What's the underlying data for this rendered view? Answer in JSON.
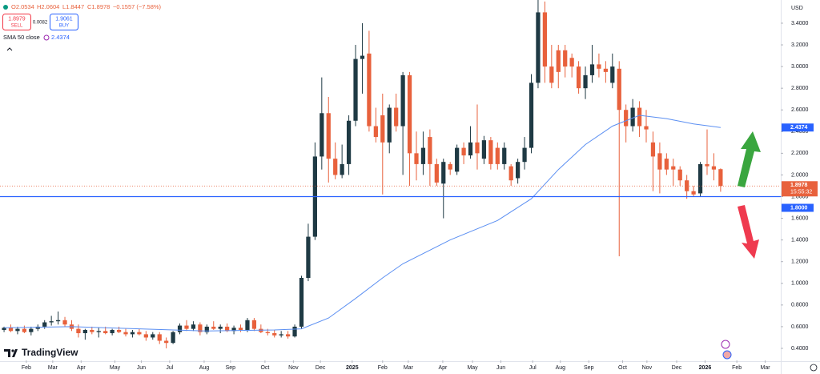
{
  "chart_data": {
    "type": "candlestick",
    "open": [
      0.57,
      0.59,
      0.56,
      0.58,
      0.55,
      0.58,
      0.6,
      0.64,
      0.65,
      0.66,
      0.62,
      0.58,
      0.54,
      0.57,
      0.55,
      0.56,
      0.54,
      0.57,
      0.55,
      0.53,
      0.55,
      0.53,
      0.5,
      0.53,
      0.47,
      0.45,
      0.55,
      0.61,
      0.58,
      0.62,
      0.55,
      0.6,
      0.58,
      0.6,
      0.56,
      0.59,
      0.57,
      0.66,
      0.58,
      0.55,
      0.54,
      0.52,
      0.53,
      0.51,
      0.6,
      1.05,
      1.43,
      2.17,
      2.57,
      2.15,
      2.0,
      2.1,
      2.5,
      3.07,
      3.12,
      2.45,
      2.55,
      2.3,
      2.62,
      2.45,
      2.92,
      2.2,
      2.1,
      2.35,
      2.1,
      1.92,
      2.1,
      2.03,
      2.25,
      2.18,
      2.3,
      2.15,
      2.32,
      2.25,
      2.1,
      2.08,
      1.97,
      2.12,
      2.25,
      2.85,
      3.5,
      3.0,
      3.15,
      3.15,
      3.08,
      3.0,
      2.8,
      2.92,
      3.02,
      2.98,
      2.85,
      2.98,
      2.6,
      2.45,
      2.62,
      2.45,
      2.3,
      2.2,
      2.15,
      2.08,
      2.05,
      1.95,
      1.85,
      1.83,
      2.1,
      2.08,
      2.0534
    ],
    "high": [
      0.6,
      0.62,
      0.6,
      0.61,
      0.6,
      0.62,
      0.66,
      0.7,
      0.74,
      0.69,
      0.66,
      0.62,
      0.58,
      0.6,
      0.59,
      0.6,
      0.58,
      0.6,
      0.58,
      0.57,
      0.58,
      0.56,
      0.55,
      0.55,
      0.5,
      0.56,
      0.63,
      0.66,
      0.65,
      0.64,
      0.62,
      0.65,
      0.62,
      0.63,
      0.61,
      0.62,
      0.68,
      0.68,
      0.62,
      0.58,
      0.57,
      0.56,
      0.56,
      0.62,
      1.07,
      1.55,
      2.3,
      2.9,
      2.72,
      2.3,
      2.28,
      2.55,
      3.2,
      3.4,
      3.33,
      2.62,
      2.75,
      2.65,
      2.75,
      2.95,
      2.95,
      2.4,
      2.4,
      2.42,
      2.15,
      2.15,
      2.12,
      2.28,
      2.3,
      2.45,
      2.65,
      2.36,
      2.35,
      2.3,
      2.3,
      2.1,
      2.15,
      2.35,
      2.93,
      3.63,
      3.6,
      3.2,
      3.2,
      3.2,
      3.12,
      3.05,
      3.0,
      3.2,
      3.12,
      3.05,
      3.12,
      3.05,
      2.65,
      2.7,
      2.68,
      2.6,
      2.4,
      2.3,
      2.2,
      2.15,
      2.08,
      2.0,
      1.9,
      2.12,
      2.42,
      2.2,
      2.0604
    ],
    "low": [
      0.55,
      0.55,
      0.53,
      0.54,
      0.52,
      0.56,
      0.58,
      0.61,
      0.62,
      0.6,
      0.56,
      0.5,
      0.48,
      0.53,
      0.5,
      0.53,
      0.52,
      0.54,
      0.51,
      0.5,
      0.52,
      0.47,
      0.48,
      0.44,
      0.4,
      0.44,
      0.53,
      0.56,
      0.56,
      0.52,
      0.53,
      0.57,
      0.54,
      0.55,
      0.53,
      0.55,
      0.55,
      0.56,
      0.54,
      0.52,
      0.5,
      0.5,
      0.49,
      0.5,
      0.58,
      1.02,
      1.4,
      2.05,
      1.93,
      1.96,
      1.97,
      2.0,
      2.45,
      2.75,
      2.4,
      2.3,
      1.82,
      2.2,
      2.4,
      2.0,
      1.9,
      1.95,
      2.0,
      1.9,
      1.9,
      1.6,
      2.0,
      2.0,
      2.1,
      2.15,
      2.05,
      2.1,
      2.05,
      2.05,
      2.05,
      1.9,
      1.92,
      2.05,
      2.2,
      2.8,
      2.85,
      2.8,
      2.8,
      2.9,
      2.9,
      2.75,
      2.7,
      2.85,
      2.9,
      2.85,
      2.8,
      1.25,
      2.3,
      2.4,
      2.35,
      2.3,
      1.85,
      1.83,
      2.0,
      1.9,
      1.9,
      1.78,
      1.8,
      1.8,
      2.0,
      1.95,
      1.8447
    ],
    "close": [
      0.59,
      0.56,
      0.58,
      0.55,
      0.58,
      0.6,
      0.64,
      0.65,
      0.66,
      0.62,
      0.58,
      0.54,
      0.57,
      0.55,
      0.56,
      0.54,
      0.57,
      0.55,
      0.53,
      0.55,
      0.53,
      0.5,
      0.53,
      0.47,
      0.45,
      0.55,
      0.61,
      0.58,
      0.62,
      0.55,
      0.6,
      0.58,
      0.6,
      0.56,
      0.59,
      0.57,
      0.66,
      0.58,
      0.55,
      0.54,
      0.52,
      0.53,
      0.51,
      0.6,
      1.05,
      1.43,
      2.17,
      2.57,
      2.15,
      2.0,
      2.1,
      2.5,
      3.07,
      3.1,
      2.45,
      2.35,
      2.3,
      2.62,
      2.45,
      2.92,
      2.2,
      2.1,
      2.25,
      2.1,
      1.93,
      2.12,
      2.05,
      2.25,
      2.18,
      2.3,
      2.2,
      2.32,
      2.1,
      2.1,
      2.25,
      1.95,
      2.12,
      2.25,
      2.85,
      3.5,
      3.0,
      2.85,
      2.95,
      3.0,
      3.0,
      2.8,
      2.92,
      3.02,
      2.98,
      2.95,
      3.0,
      2.6,
      2.45,
      2.62,
      2.45,
      2.42,
      2.17,
      2.05,
      2.05,
      2.05,
      1.95,
      1.85,
      1.82,
      2.1,
      2.08,
      2.05,
      1.8978
    ],
    "up_color": "#1f3a44",
    "down_color": "#e8613c",
    "sma": {
      "name": "SMA 50 close",
      "color": "#5b8ff2",
      "x": [
        0,
        10,
        20,
        30,
        40,
        44,
        48,
        52,
        56,
        59,
        66,
        73,
        78,
        82,
        86,
        90,
        94,
        98,
        102,
        106
      ],
      "values": [
        0.59,
        0.6,
        0.58,
        0.56,
        0.57,
        0.58,
        0.68,
        0.86,
        1.05,
        1.18,
        1.4,
        1.58,
        1.78,
        2.05,
        2.28,
        2.45,
        2.55,
        2.52,
        2.47,
        2.4374
      ]
    },
    "hline": {
      "value": 1.8,
      "label": "1.8000",
      "color": "#2962ff"
    },
    "ylim": [
      0.289,
      3.614
    ],
    "yticks": [
      {
        "value": 0.4,
        "label": "0.4000"
      },
      {
        "value": 0.6,
        "label": "0.6000"
      },
      {
        "value": 0.8,
        "label": "0.8000"
      },
      {
        "value": 1.0,
        "label": "1.0000"
      },
      {
        "value": 1.2,
        "label": "1.2000"
      },
      {
        "value": 1.4,
        "label": "1.4000"
      },
      {
        "value": 1.6,
        "label": "1.6000"
      },
      {
        "value": 1.8,
        "label": "1.8000"
      },
      {
        "value": 2.0,
        "label": "2.0000"
      },
      {
        "value": 2.2,
        "label": "2.2000"
      },
      {
        "value": 2.4,
        "label": "2.4000"
      },
      {
        "value": 2.6,
        "label": "2.6000"
      },
      {
        "value": 2.8,
        "label": "2.8000"
      },
      {
        "value": 3.0,
        "label": "3.0000"
      },
      {
        "value": 3.2,
        "label": "3.2000"
      },
      {
        "value": 3.4,
        "label": "3.4000"
      }
    ],
    "xlim": [
      -0.6,
      114.9
    ],
    "xticks": [
      {
        "value": 3.3,
        "label": "Feb"
      },
      {
        "value": 7.2,
        "label": "Mar"
      },
      {
        "value": 11.4,
        "label": "Apr"
      },
      {
        "value": 16.4,
        "label": "May"
      },
      {
        "value": 20.3,
        "label": "Jun"
      },
      {
        "value": 24.5,
        "label": "Jul"
      },
      {
        "value": 29.6,
        "label": "Aug"
      },
      {
        "value": 33.5,
        "label": "Sep"
      },
      {
        "value": 38.6,
        "label": "Oct"
      },
      {
        "value": 42.8,
        "label": "Nov"
      },
      {
        "value": 46.8,
        "label": "Dec"
      },
      {
        "value": 51.5,
        "label": "2025"
      },
      {
        "value": 56.0,
        "label": "Feb"
      },
      {
        "value": 59.8,
        "label": "Mar"
      },
      {
        "value": 64.9,
        "label": "Apr"
      },
      {
        "value": 69.3,
        "label": "May"
      },
      {
        "value": 73.5,
        "label": "Jun"
      },
      {
        "value": 78.2,
        "label": "Jul"
      },
      {
        "value": 82.3,
        "label": "Aug"
      },
      {
        "value": 86.5,
        "label": "Sep"
      },
      {
        "value": 91.5,
        "label": "Oct"
      },
      {
        "value": 95.1,
        "label": "Nov"
      },
      {
        "value": 99.5,
        "label": "Dec"
      },
      {
        "value": 103.7,
        "label": "2026"
      },
      {
        "value": 108.4,
        "label": "Feb"
      },
      {
        "value": 112.6,
        "label": "Mar"
      }
    ],
    "grid": false
  },
  "ui": {
    "o": "O2.0534",
    "h": "H2.0604",
    "l": "L1.8447",
    "c": "C1.8978",
    "change": "−0.1557 (−7.58%)",
    "sell_price": "1.8979",
    "sell": "SELL",
    "spread": "0.0082",
    "buy_price": "1.9061",
    "buy": "BUY",
    "currency": "USD",
    "countdown": "15:55:32",
    "brand": "TradingView"
  }
}
